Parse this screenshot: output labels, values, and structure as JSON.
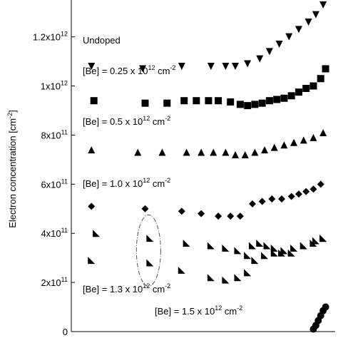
{
  "chart_data": {
    "type": "scatter",
    "title": "",
    "ylabel_base": "Electron concentration [cm",
    "ylabel_exp": "-2",
    "ylabel_close": "]",
    "xlabel": "",
    "ylim": [
      0,
      1350000000000.0
    ],
    "xlim": [
      0,
      1
    ],
    "grid": false,
    "legend": "none",
    "y_ticks": [
      {
        "value": 0,
        "base": "0",
        "exp": ""
      },
      {
        "value": 200000000000.0,
        "base": "2x10",
        "exp": "11"
      },
      {
        "value": 400000000000.0,
        "base": "4x10",
        "exp": "11"
      },
      {
        "value": 600000000000.0,
        "base": "6x10",
        "exp": "11"
      },
      {
        "value": 800000000000.0,
        "base": "8x10",
        "exp": "11"
      },
      {
        "value": 1000000000000.0,
        "base": "1x10",
        "exp": "12"
      },
      {
        "value": 1200000000000.0,
        "base": "1.2x10",
        "exp": "12"
      }
    ],
    "series": [
      {
        "name": "Undoped",
        "label_base": "Undoped",
        "label_exp": "",
        "label_tail": "",
        "marker": "triangle-down",
        "points": [
          [
            0.03,
            1080000000000.0
          ],
          [
            0.24,
            1070000000000.0
          ],
          [
            0.4,
            1080000000000.0
          ],
          [
            0.52,
            1080000000000.0
          ],
          [
            0.58,
            1080000000000.0
          ],
          [
            0.62,
            1080000000000.0
          ],
          [
            0.67,
            1090000000000.0
          ],
          [
            0.72,
            1110000000000.0
          ],
          [
            0.76,
            1140000000000.0
          ],
          [
            0.8,
            1170000000000.0
          ],
          [
            0.84,
            1200000000000.0
          ],
          [
            0.88,
            1230000000000.0
          ],
          [
            0.92,
            1260000000000.0
          ],
          [
            0.95,
            1290000000000.0
          ],
          [
            0.98,
            1330000000000.0
          ]
        ]
      },
      {
        "name": "[Be] = 0.25 x 10^12 cm^-2",
        "label_base": "[Be] = 0.25 x 10",
        "label_exp": "12",
        "label_tail": " cm",
        "label_exp2": "-2",
        "marker": "square",
        "points": [
          [
            0.04,
            940000000000.0
          ],
          [
            0.25,
            930000000000.0
          ],
          [
            0.34,
            930000000000.0
          ],
          [
            0.41,
            940000000000.0
          ],
          [
            0.46,
            940000000000.0
          ],
          [
            0.51,
            940000000000.0
          ],
          [
            0.55,
            940000000000.0
          ],
          [
            0.6,
            935000000000.0
          ],
          [
            0.64,
            925000000000.0
          ],
          [
            0.67,
            920000000000.0
          ],
          [
            0.7,
            925000000000.0
          ],
          [
            0.73,
            930000000000.0
          ],
          [
            0.76,
            940000000000.0
          ],
          [
            0.79,
            945000000000.0
          ],
          [
            0.82,
            950000000000.0
          ],
          [
            0.85,
            960000000000.0
          ],
          [
            0.88,
            975000000000.0
          ],
          [
            0.91,
            990000000000.0
          ],
          [
            0.94,
            1000000000000.0
          ],
          [
            0.97,
            1030000000000.0
          ],
          [
            0.99,
            1070000000000.0
          ]
        ]
      },
      {
        "name": "[Be] = 0.5 x 10^12 cm^-2",
        "label_base": "[Be] = 0.5 x 10",
        "label_exp": "12",
        "label_tail": " cm",
        "label_exp2": "-2",
        "marker": "triangle-up",
        "points": [
          [
            0.03,
            740000000000.0
          ],
          [
            0.22,
            730000000000.0
          ],
          [
            0.32,
            730000000000.0
          ],
          [
            0.42,
            730000000000.0
          ],
          [
            0.48,
            730000000000.0
          ],
          [
            0.53,
            730000000000.0
          ],
          [
            0.58,
            730000000000.0
          ],
          [
            0.62,
            720000000000.0
          ],
          [
            0.66,
            720000000000.0
          ],
          [
            0.7,
            730000000000.0
          ],
          [
            0.74,
            740000000000.0
          ],
          [
            0.78,
            750000000000.0
          ],
          [
            0.82,
            760000000000.0
          ],
          [
            0.86,
            770000000000.0
          ],
          [
            0.9,
            780000000000.0
          ],
          [
            0.94,
            790000000000.0
          ],
          [
            0.98,
            810000000000.0
          ]
        ]
      },
      {
        "name": "[Be] = 1.0 x 10^12 cm^-2",
        "label_base": "[Be] = 1.0 x 10",
        "label_exp": "12",
        "label_tail": " cm",
        "label_exp2": "-2",
        "marker": "diamond",
        "points": [
          [
            0.03,
            510000000000.0
          ],
          [
            0.25,
            500000000000.0
          ],
          [
            0.4,
            490000000000.0
          ],
          [
            0.48,
            480000000000.0
          ],
          [
            0.55,
            470000000000.0
          ],
          [
            0.6,
            470000000000.0
          ],
          [
            0.64,
            470000000000.0
          ],
          [
            0.69,
            520000000000.0
          ],
          [
            0.73,
            530000000000.0
          ],
          [
            0.77,
            540000000000.0
          ],
          [
            0.81,
            540000000000.0
          ],
          [
            0.85,
            550000000000.0
          ],
          [
            0.88,
            560000000000.0
          ],
          [
            0.91,
            570000000000.0
          ],
          [
            0.94,
            580000000000.0
          ],
          [
            0.97,
            600000000000.0
          ]
        ]
      },
      {
        "name": "[Be] = 1.3 x 10^12 cm^-2",
        "label_base": "[Be] = 1.3 x 10",
        "label_exp": "12",
        "label_tail": " cm",
        "label_exp2": "-2",
        "marker": "triangle-right",
        "points": [
          [
            0.05,
            400000000000.0
          ],
          [
            0.27,
            380000000000.0
          ],
          [
            0.42,
            360000000000.0
          ],
          [
            0.52,
            350000000000.0
          ],
          [
            0.58,
            340000000000.0
          ],
          [
            0.63,
            330000000000.0
          ],
          [
            0.67,
            310000000000.0
          ],
          [
            0.69,
            350000000000.0
          ],
          [
            0.72,
            360000000000.0
          ],
          [
            0.75,
            350000000000.0
          ],
          [
            0.78,
            340000000000.0
          ],
          [
            0.81,
            320000000000.0
          ],
          [
            0.85,
            320000000000.0
          ],
          [
            0.9,
            350000000000.0
          ],
          [
            0.95,
            370000000000.0
          ],
          [
            0.98,
            380000000000.0
          ],
          [
            0.03,
            290000000000.0
          ],
          [
            0.27,
            280000000000.0
          ],
          [
            0.4,
            250000000000.0
          ],
          [
            0.52,
            220000000000.0
          ],
          [
            0.58,
            210000000000.0
          ],
          [
            0.63,
            220000000000.0
          ],
          [
            0.67,
            240000000000.0
          ],
          [
            0.7,
            290000000000.0
          ],
          [
            0.74,
            310000000000.0
          ],
          [
            0.78,
            320000000000.0
          ],
          [
            0.82,
            330000000000.0
          ],
          [
            0.86,
            340000000000.0
          ],
          [
            0.9,
            350000000000.0
          ],
          [
            0.94,
            360000000000.0
          ],
          [
            0.98,
            380000000000.0
          ]
        ]
      },
      {
        "name": "[Be] = 1.5 x 10^12 cm^-2",
        "label_base": "[Be] = 1.5 x 10",
        "label_exp": "12",
        "label_tail": " cm",
        "label_exp2": "-2",
        "marker": "circle",
        "points": [
          [
            0.94,
            10000000000.0
          ],
          [
            0.95,
            25000000000.0
          ],
          [
            0.96,
            45000000000.0
          ],
          [
            0.97,
            65000000000.0
          ],
          [
            0.98,
            85000000000.0
          ],
          [
            0.99,
            100000000000.0
          ]
        ]
      }
    ]
  }
}
